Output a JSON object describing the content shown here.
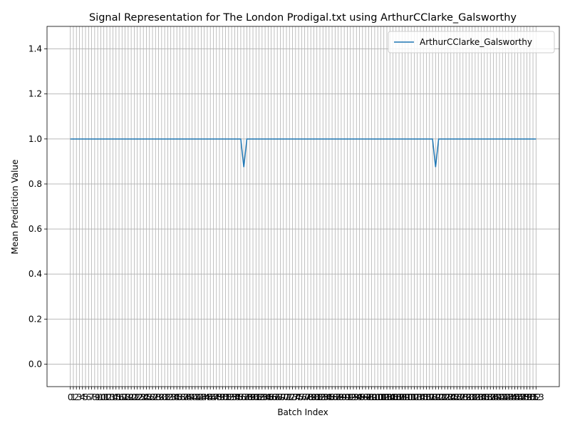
{
  "chart_data": {
    "type": "line",
    "title": "Signal Representation for The London Prodigal.txt using ArthurCClarke_Galsworthy",
    "xlabel": "Batch Index",
    "ylabel": "Mean Prediction Value",
    "x": [
      0,
      1,
      2,
      3,
      4,
      5,
      6,
      7,
      8,
      9,
      10,
      11,
      12,
      13,
      14,
      15,
      16,
      17,
      18,
      19,
      20,
      21,
      22,
      23,
      24,
      25,
      26,
      27,
      28,
      29,
      30,
      31,
      32,
      33,
      34,
      35,
      36,
      37,
      38,
      39,
      40,
      41,
      42,
      43,
      44,
      45,
      46,
      47,
      48,
      49,
      50,
      51,
      52,
      53,
      54,
      55,
      56,
      57,
      58,
      59,
      60,
      61,
      62,
      63,
      64,
      65,
      66,
      67,
      68,
      69,
      70,
      71,
      72,
      73,
      74,
      75,
      76,
      77,
      78,
      79,
      80,
      81,
      82,
      83,
      84,
      85,
      86,
      87,
      88,
      89,
      90,
      91,
      92,
      93,
      94,
      95,
      96,
      97,
      98,
      99,
      100,
      101,
      102,
      103,
      104,
      105,
      106,
      107,
      108,
      109,
      110,
      111,
      112,
      113,
      114,
      115,
      116,
      117,
      118,
      119,
      120,
      121,
      122,
      123,
      124,
      125,
      126,
      127,
      128,
      129,
      130,
      131,
      132,
      133,
      134,
      135,
      136,
      137,
      138,
      139,
      140,
      141,
      142,
      143,
      144,
      145,
      146,
      147,
      148,
      149,
      150,
      151,
      152,
      153
    ],
    "series": [
      {
        "name": "ArthurCClarke_Galsworthy",
        "color": "#1f77b4",
        "values": [
          1,
          1,
          1,
          1,
          1,
          1,
          1,
          1,
          1,
          1,
          1,
          1,
          1,
          1,
          1,
          1,
          1,
          1,
          1,
          1,
          1,
          1,
          1,
          1,
          1,
          1,
          1,
          1,
          1,
          1,
          1,
          1,
          1,
          1,
          1,
          1,
          1,
          1,
          1,
          1,
          1,
          1,
          1,
          1,
          1,
          1,
          1,
          1,
          1,
          1,
          1,
          1,
          1,
          1,
          1,
          1,
          1,
          0.875,
          1,
          1,
          1,
          1,
          1,
          1,
          1,
          1,
          1,
          1,
          1,
          1,
          1,
          1,
          1,
          1,
          1,
          1,
          1,
          1,
          1,
          1,
          1,
          1,
          1,
          1,
          1,
          1,
          1,
          1,
          1,
          1,
          1,
          1,
          1,
          1,
          1,
          1,
          1,
          1,
          1,
          1,
          1,
          1,
          1,
          1,
          1,
          1,
          1,
          1,
          1,
          1,
          1,
          1,
          1,
          1,
          1,
          1,
          1,
          1,
          1,
          1,
          0.875,
          1,
          1,
          1,
          1,
          1,
          1,
          1,
          1,
          1,
          1,
          1,
          1,
          1,
          1,
          1,
          1,
          1,
          1,
          1,
          1,
          1,
          1,
          1,
          1,
          1,
          1,
          1,
          1,
          1,
          1,
          1,
          1,
          1
        ]
      }
    ],
    "xlim": [
      -7.65,
      160.65
    ],
    "xticks": [
      0,
      1,
      2,
      3,
      4,
      5,
      6,
      7,
      8,
      9,
      10,
      11,
      12,
      13,
      14,
      15,
      16,
      17,
      18,
      19,
      20,
      21,
      22,
      23,
      24,
      25,
      26,
      27,
      28,
      29,
      30,
      31,
      32,
      33,
      34,
      35,
      36,
      37,
      38,
      39,
      40,
      41,
      42,
      43,
      44,
      45,
      46,
      47,
      48,
      49,
      50,
      51,
      52,
      53,
      54,
      55,
      56,
      57,
      58,
      59,
      60,
      61,
      62,
      63,
      64,
      65,
      66,
      67,
      68,
      69,
      70,
      71,
      72,
      73,
      74,
      75,
      76,
      77,
      78,
      79,
      80,
      81,
      82,
      83,
      84,
      85,
      86,
      87,
      88,
      89,
      90,
      91,
      92,
      93,
      94,
      95,
      96,
      97,
      98,
      99,
      100,
      101,
      102,
      103,
      104,
      105,
      106,
      107,
      108,
      109,
      110,
      111,
      112,
      113,
      114,
      115,
      116,
      117,
      118,
      119,
      120,
      121,
      122,
      123,
      124,
      125,
      126,
      127,
      128,
      129,
      130,
      131,
      132,
      133,
      134,
      135,
      136,
      137,
      138,
      139,
      140,
      141,
      142,
      143,
      144,
      145,
      146,
      147,
      148,
      149,
      150,
      151,
      152,
      153
    ],
    "ylim": [
      -0.1,
      1.5
    ],
    "yticks": [
      {
        "value": 0,
        "label": "0.0"
      },
      0.2,
      0.4,
      0.6,
      0.8,
      {
        "value": 1,
        "label": "1.0"
      },
      1.2,
      1.4
    ],
    "grid": true,
    "legend": "upper right"
  }
}
